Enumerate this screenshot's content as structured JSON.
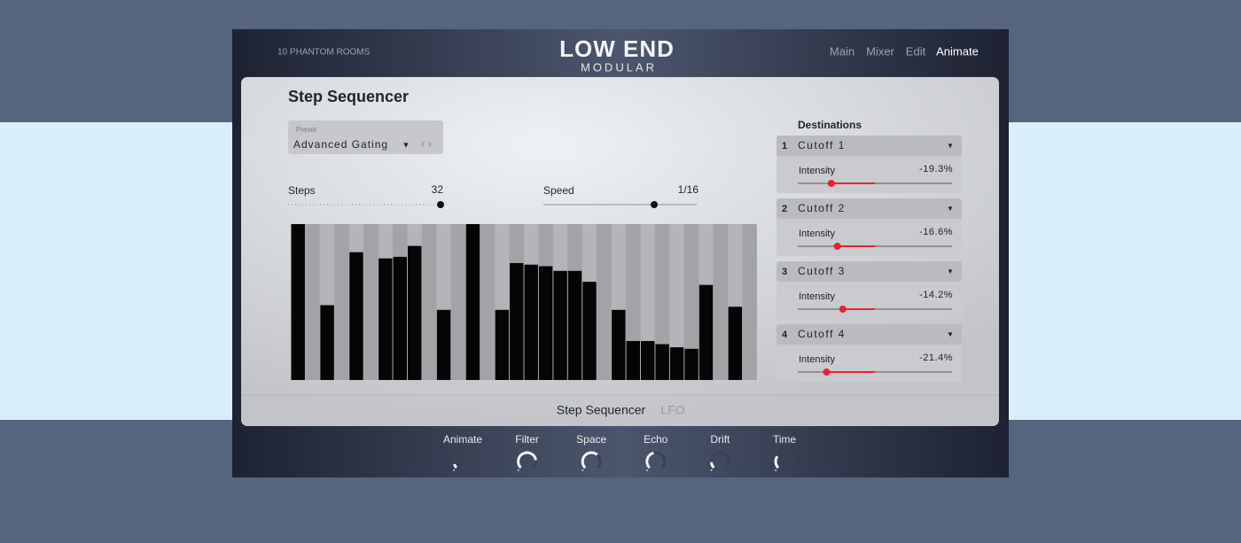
{
  "header": {
    "brand": "10 PHANTOM ROOMS",
    "logo_title": "LOW END",
    "logo_subtitle": "MODULAR",
    "nav": [
      {
        "label": "Main",
        "active": false
      },
      {
        "label": "Mixer",
        "active": false
      },
      {
        "label": "Edit",
        "active": false
      },
      {
        "label": "Animate",
        "active": true
      }
    ]
  },
  "panel": {
    "title": "Step Sequencer",
    "preset": {
      "label": "Preset",
      "value": "Advanced Gating"
    },
    "steps": {
      "label": "Steps",
      "value": 32
    },
    "speed": {
      "label": "Speed",
      "value": "1/16"
    },
    "step_values": [
      100,
      0,
      48,
      0,
      82,
      0,
      78,
      79,
      86,
      0,
      45,
      0,
      100,
      0,
      45,
      75,
      74,
      73,
      70,
      70,
      63,
      0,
      45,
      25,
      25,
      23,
      21,
      20,
      61,
      0,
      47,
      0
    ],
    "tabs": [
      {
        "label": "Step Sequencer",
        "active": true
      },
      {
        "label": "LFO",
        "active": false
      }
    ]
  },
  "destinations": {
    "title": "Destinations",
    "items": [
      {
        "number": 1,
        "target": "Cutoff 1",
        "intensity_label": "Intensity",
        "intensity": {
          "value": -19.3,
          "label": "-19.3%"
        }
      },
      {
        "number": 2,
        "target": "Cutoff 2",
        "intensity_label": "Intensity",
        "intensity": {
          "value": -16.6,
          "label": "-16.6%"
        }
      },
      {
        "number": 3,
        "target": "Cutoff 3",
        "intensity_label": "Intensity",
        "intensity": {
          "value": -14.2,
          "label": "-14.2%"
        }
      },
      {
        "number": 4,
        "target": "Cutoff 4",
        "intensity_label": "Intensity",
        "intensity": {
          "value": -21.4,
          "label": "-21.4%"
        }
      }
    ]
  },
  "knobs": [
    {
      "label": "Animate",
      "value": 10
    },
    {
      "label": "Filter",
      "value": 80
    },
    {
      "label": "Space",
      "value": 65
    },
    {
      "label": "Echo",
      "value": 45
    },
    {
      "label": "Drift",
      "value": 15
    },
    {
      "label": "Time",
      "value": 30
    }
  ]
}
